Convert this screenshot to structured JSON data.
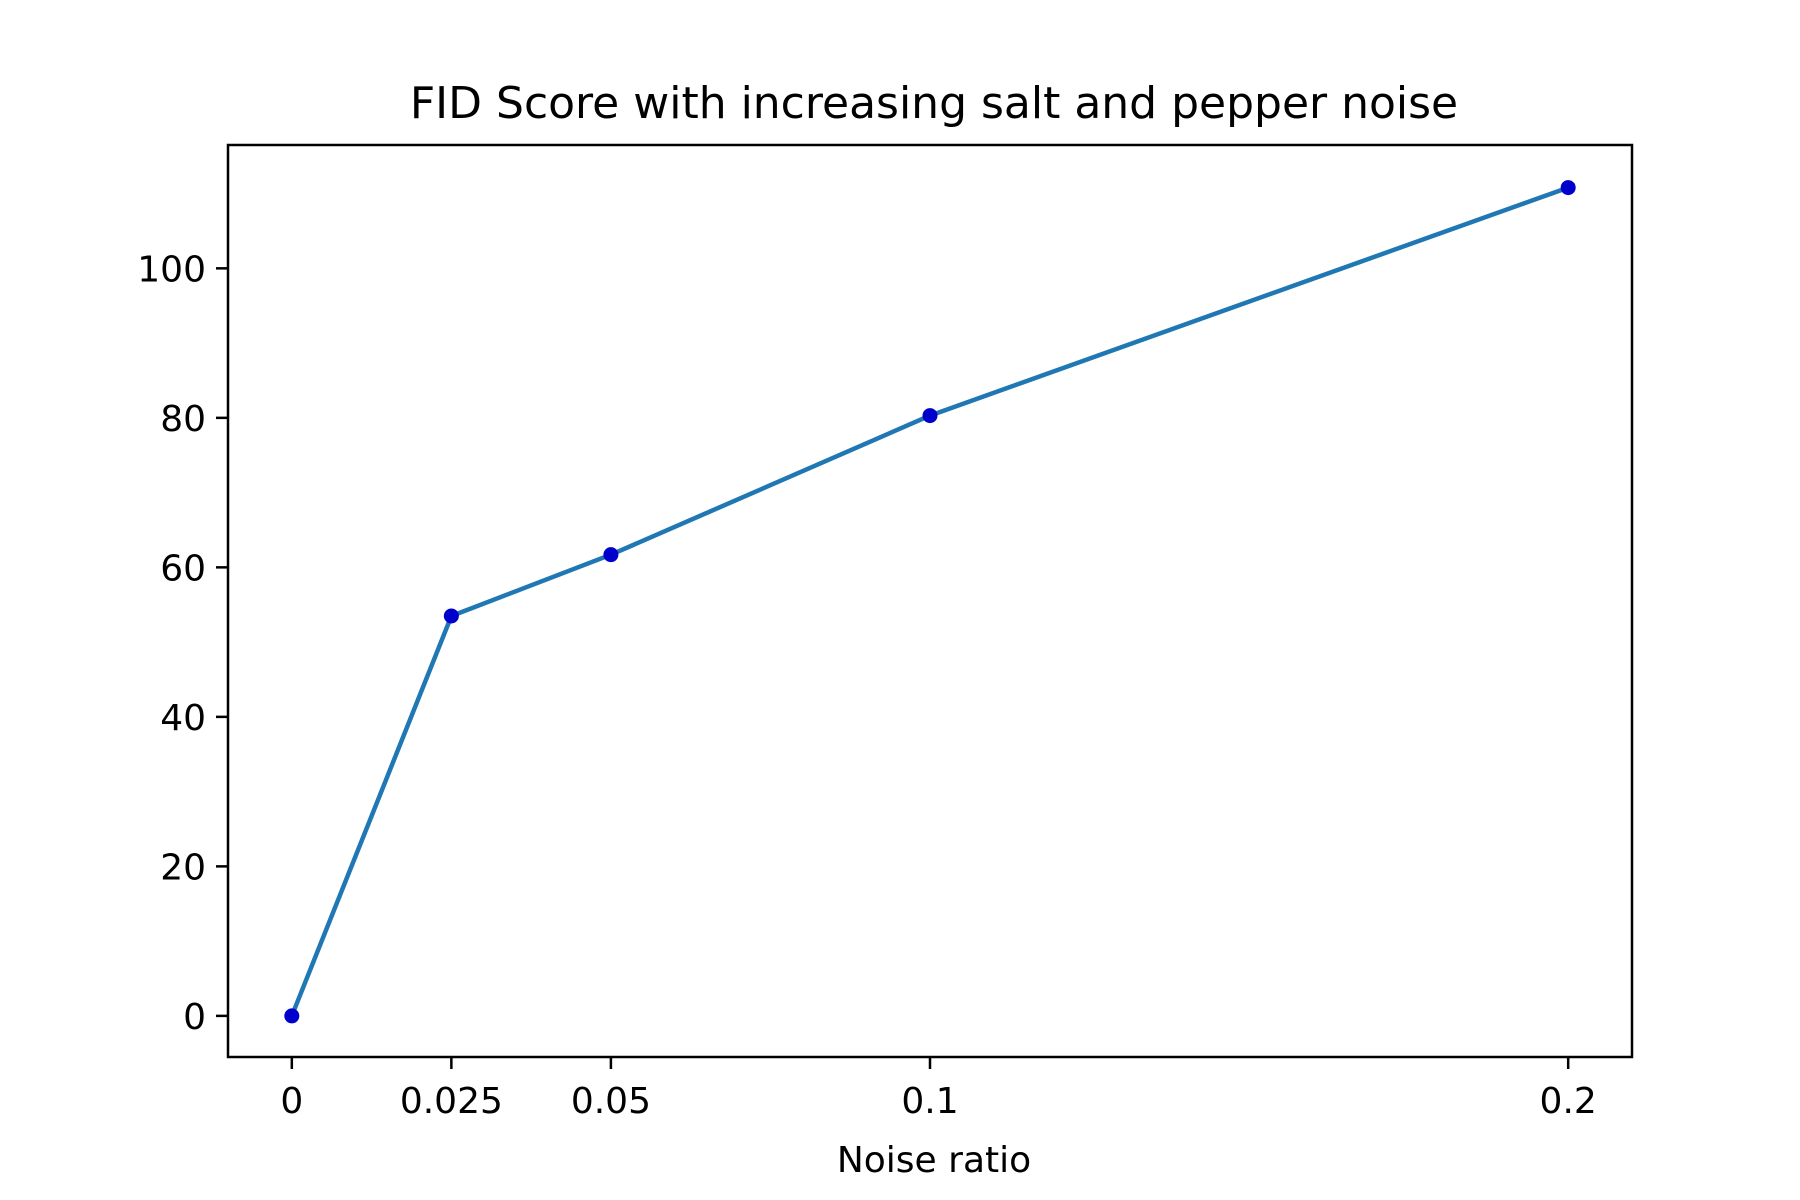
{
  "chart_data": {
    "type": "line",
    "title": "FID Score with increasing salt and pepper noise",
    "xlabel": "Noise ratio",
    "ylabel": "",
    "x": [
      0,
      0.025,
      0.05,
      0.1,
      0.2
    ],
    "x_tick_labels": [
      "0",
      "0.025",
      "0.05",
      "0.1",
      "0.2"
    ],
    "y_ticks": [
      0,
      20,
      40,
      60,
      80,
      100
    ],
    "xlim": [
      -0.01,
      0.21
    ],
    "ylim": [
      -5.5,
      116.5
    ],
    "series": [
      {
        "values": [
          0,
          53.5,
          61.7,
          80.3,
          110.8
        ]
      }
    ],
    "line_color": "#1f77b4",
    "marker_color": "#0000cc",
    "grid": false,
    "legend": "none"
  }
}
